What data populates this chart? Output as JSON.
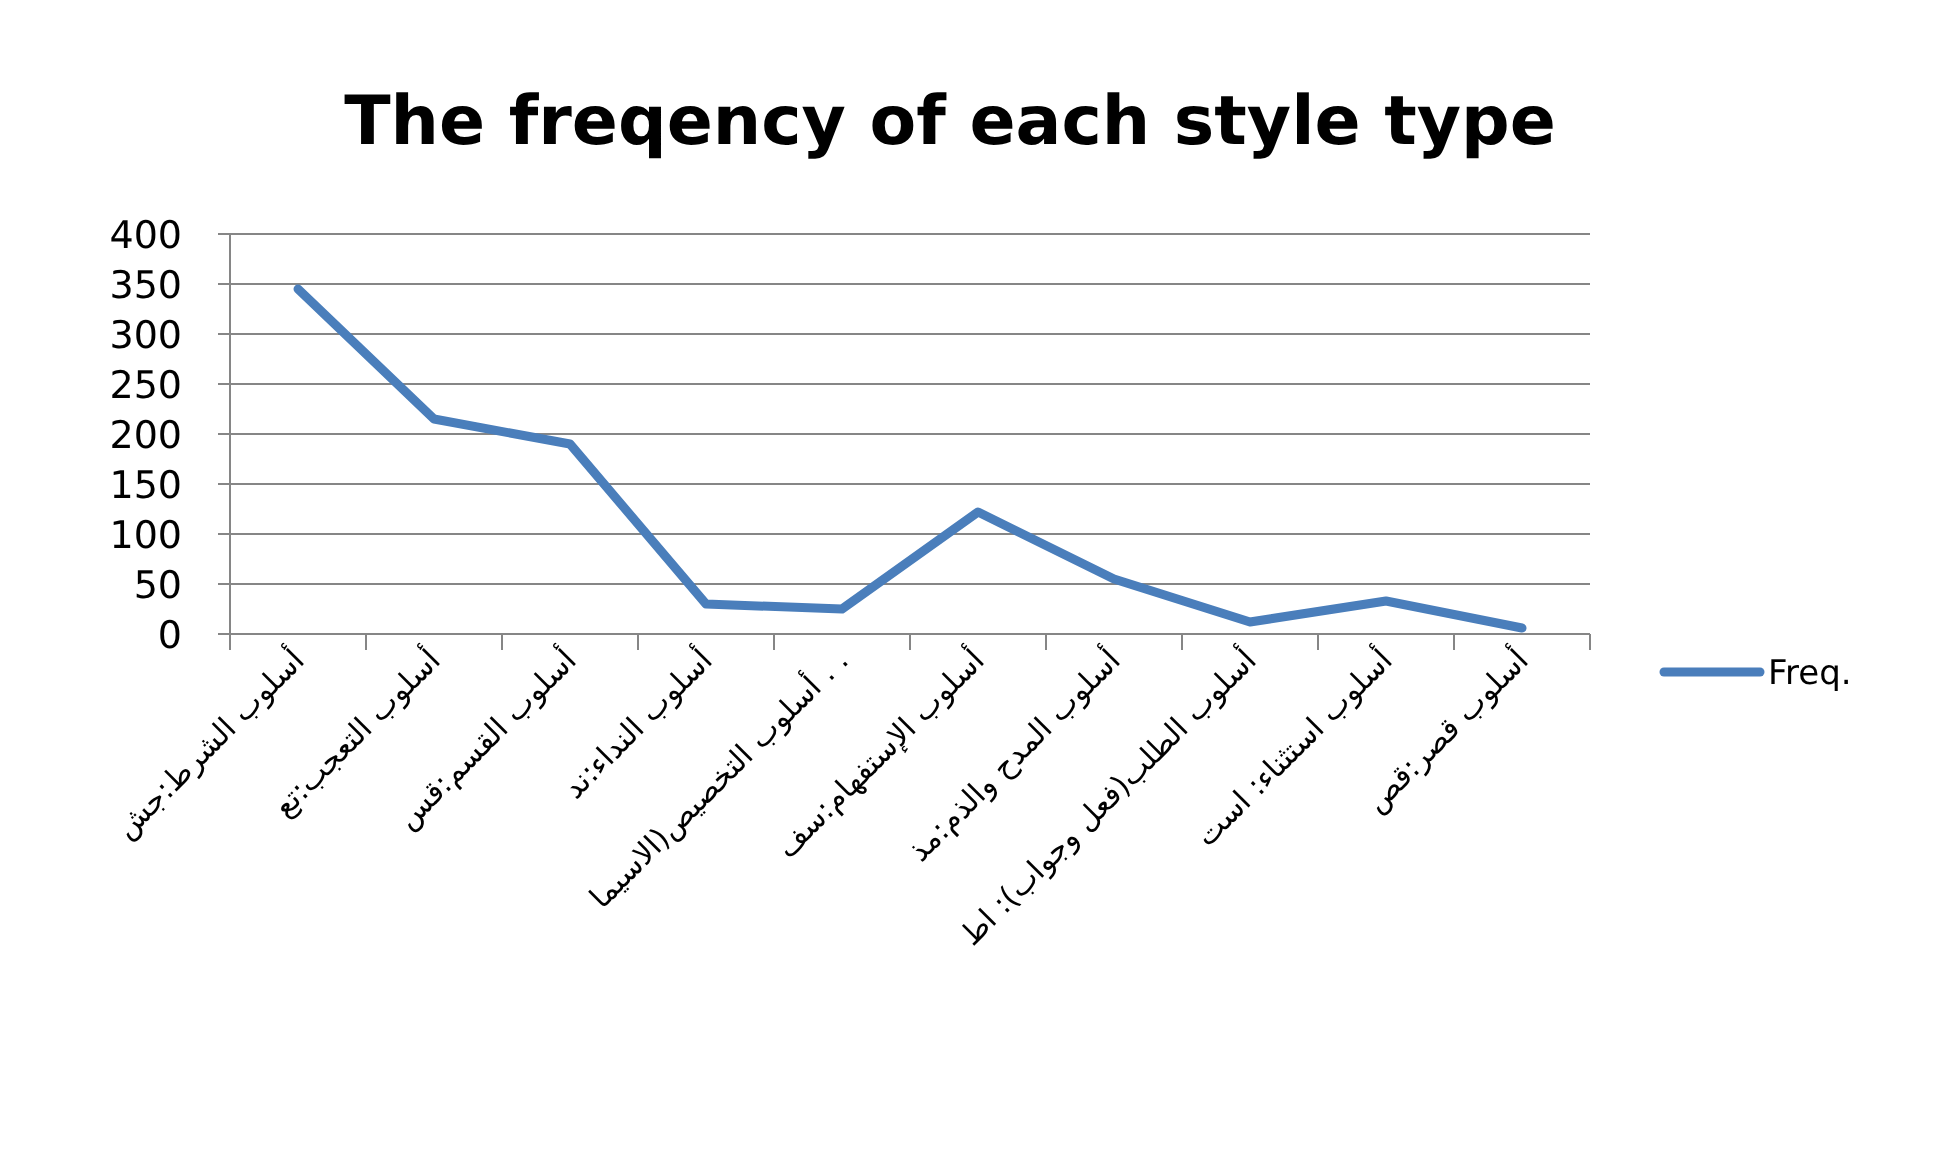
{
  "chart_data": {
    "type": "line",
    "title": "The freqency of each style type",
    "categories": [
      "أسلوب الشرط:جش",
      "أسلوب التعجب:تع",
      "أسلوب القسم:قس",
      "أسلوب النداء:ند",
      "أسلوب التخصيص(الاسيما . .",
      "أسلوب الإستفهام:سف",
      "أسلوب المدح والذم:مذ",
      "أسلوب الطلب(فعل وجواب): اط",
      "أسلوب استثناء: است",
      "أسلوب قصر:قص"
    ],
    "series": [
      {
        "name": "Freq.",
        "color": "#4a7ebb",
        "values": [
          345,
          215,
          190,
          30,
          25,
          122,
          55,
          12,
          33,
          6
        ]
      }
    ],
    "ylim": [
      0,
      400
    ],
    "yticks": [
      0,
      50,
      100,
      150,
      200,
      250,
      300,
      350,
      400
    ],
    "grid": "y",
    "legend": "right",
    "marker": "none",
    "line_style": "solid"
  }
}
